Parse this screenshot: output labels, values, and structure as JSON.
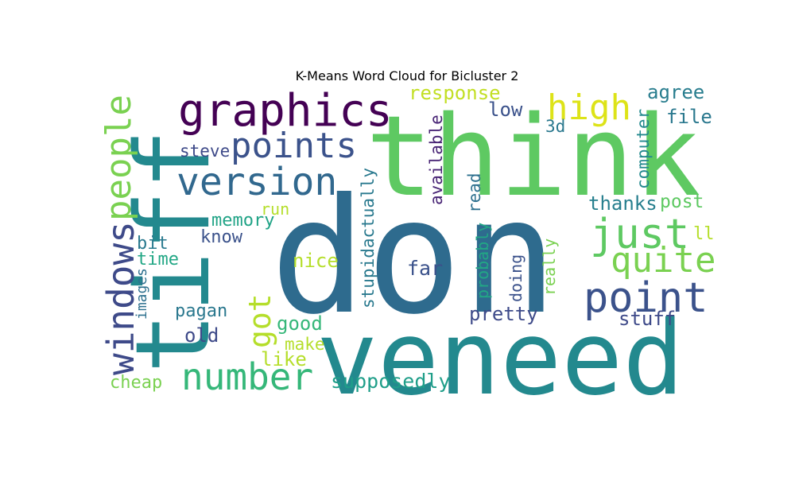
{
  "chart_data": {
    "type": "wordcloud",
    "title": "K-Means Word Cloud for Bicluster 2",
    "words": [
      {
        "text": "don",
        "weight": 100,
        "color": "#2e6b8e",
        "rotated": false
      },
      {
        "text": "think",
        "weight": 72,
        "color": "#5ec962",
        "rotated": false
      },
      {
        "text": "tiff",
        "weight": 66,
        "color": "#23898e",
        "rotated": true
      },
      {
        "text": "veneed",
        "weight": 66,
        "color": "#23898e",
        "rotated": false
      },
      {
        "text": "graphics",
        "weight": 36,
        "color": "#440154",
        "rotated": false
      },
      {
        "text": "version",
        "weight": 30,
        "color": "#31688e",
        "rotated": false
      },
      {
        "text": "points",
        "weight": 28,
        "color": "#3b528b",
        "rotated": false
      },
      {
        "text": "high",
        "weight": 28,
        "color": "#dde318",
        "rotated": false
      },
      {
        "text": "just",
        "weight": 34,
        "color": "#5ec962",
        "rotated": false
      },
      {
        "text": "quite",
        "weight": 28,
        "color": "#7ad151",
        "rotated": false
      },
      {
        "text": "point",
        "weight": 34,
        "color": "#3b528b",
        "rotated": false
      },
      {
        "text": "number",
        "weight": 30,
        "color": "#35b779",
        "rotated": false
      },
      {
        "text": "windows",
        "weight": 30,
        "color": "#3e4a89",
        "rotated": true
      },
      {
        "text": "people",
        "weight": 28,
        "color": "#7ad151",
        "rotated": true
      },
      {
        "text": "got",
        "weight": 26,
        "color": "#b5de2b",
        "rotated": true
      },
      {
        "text": "response",
        "weight": 16,
        "color": "#c2df23",
        "rotated": false
      },
      {
        "text": "agree",
        "weight": 16,
        "color": "#287d8e",
        "rotated": false
      },
      {
        "text": "low",
        "weight": 16,
        "color": "#3b528b",
        "rotated": false
      },
      {
        "text": "file",
        "weight": 16,
        "color": "#2a788e",
        "rotated": false
      },
      {
        "text": "3d",
        "weight": 14,
        "color": "#2a788e",
        "rotated": false
      },
      {
        "text": "steve",
        "weight": 14,
        "color": "#3e4a89",
        "rotated": false
      },
      {
        "text": "available",
        "weight": 14,
        "color": "#482475",
        "rotated": true
      },
      {
        "text": "read",
        "weight": 14,
        "color": "#2d708e",
        "rotated": true
      },
      {
        "text": "computer",
        "weight": 14,
        "color": "#23898e",
        "rotated": true
      },
      {
        "text": "stupidactually",
        "weight": 14,
        "color": "#29798e",
        "rotated": true
      },
      {
        "text": "thanks",
        "weight": 16,
        "color": "#277f8e",
        "rotated": false
      },
      {
        "text": "post",
        "weight": 16,
        "color": "#5ec962",
        "rotated": false
      },
      {
        "text": "memory",
        "weight": 15,
        "color": "#20a386",
        "rotated": false
      },
      {
        "text": "run",
        "weight": 14,
        "color": "#b5de2b",
        "rotated": false
      },
      {
        "text": "know",
        "weight": 15,
        "color": "#3b528b",
        "rotated": false
      },
      {
        "text": "bit",
        "weight": 15,
        "color": "#29798e",
        "rotated": false
      },
      {
        "text": "time",
        "weight": 15,
        "color": "#22a785",
        "rotated": false
      },
      {
        "text": "ll",
        "weight": 15,
        "color": "#b5de2b",
        "rotated": false
      },
      {
        "text": "nice",
        "weight": 16,
        "color": "#b5de2b",
        "rotated": false
      },
      {
        "text": "far",
        "weight": 17,
        "color": "#3b528b",
        "rotated": false
      },
      {
        "text": "probably",
        "weight": 14,
        "color": "#22a785",
        "rotated": true
      },
      {
        "text": "doing",
        "weight": 14,
        "color": "#3b528b",
        "rotated": true
      },
      {
        "text": "really",
        "weight": 14,
        "color": "#7ad151",
        "rotated": true
      },
      {
        "text": "images",
        "weight": 12,
        "color": "#2d708e",
        "rotated": true
      },
      {
        "text": "pagan",
        "weight": 15,
        "color": "#2a788e",
        "rotated": false
      },
      {
        "text": "good",
        "weight": 16,
        "color": "#35b779",
        "rotated": false
      },
      {
        "text": "pretty",
        "weight": 16,
        "color": "#3e4a89",
        "rotated": false
      },
      {
        "text": "stuff",
        "weight": 16,
        "color": "#3e4a89",
        "rotated": false
      },
      {
        "text": "old",
        "weight": 16,
        "color": "#3e4a89",
        "rotated": false
      },
      {
        "text": "make",
        "weight": 14,
        "color": "#b5de2b",
        "rotated": false
      },
      {
        "text": "like",
        "weight": 16,
        "color": "#b5de2b",
        "rotated": false
      },
      {
        "text": "cheap",
        "weight": 15,
        "color": "#7ad151",
        "rotated": false
      },
      {
        "text": "supposedly",
        "weight": 17,
        "color": "#1f9e89",
        "rotated": false
      }
    ]
  }
}
